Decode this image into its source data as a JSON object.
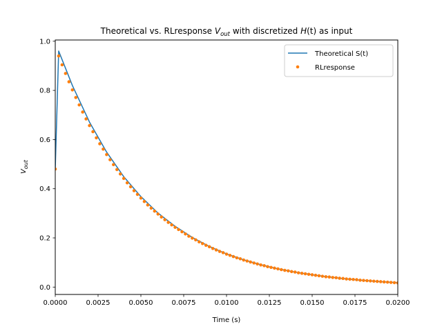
{
  "chart_data": {
    "type": "line",
    "title": {
      "prefix": "Theoretical vs. RLresponse ",
      "v": "V",
      "v_sub": "out",
      "middle": " with discretized ",
      "h": "H",
      "h_arg": "(t)",
      "suffix": " as input"
    },
    "xlabel": "Time (s)",
    "ylabel": {
      "v": "V",
      "sub": "out"
    },
    "xlim": [
      0,
      0.02
    ],
    "ylim": [
      -0.03,
      1.005
    ],
    "x_ticks": [
      0,
      0.0025,
      0.005,
      0.0075,
      0.01,
      0.0125,
      0.015,
      0.0175,
      0.02
    ],
    "x_tick_labels": [
      "0.0000",
      "0.0025",
      "0.0050",
      "0.0075",
      "0.0100",
      "0.0125",
      "0.0150",
      "0.0175",
      "0.0200"
    ],
    "y_ticks": [
      0,
      0.2,
      0.4,
      0.6,
      0.8,
      1.0
    ],
    "y_tick_labels": [
      "0.0",
      "0.2",
      "0.4",
      "0.6",
      "0.8",
      "1.0"
    ],
    "grid": false,
    "legend_position": "top-right",
    "series": [
      {
        "name": "Theoretical S(t)",
        "kind": "line",
        "color": "#1f77b4",
        "x": [
          0,
          0.0002,
          0.001,
          0.002,
          0.003,
          0.004,
          0.005,
          0.006,
          0.007,
          0.008,
          0.009,
          0.01,
          0.011,
          0.012,
          0.013,
          0.014,
          0.015,
          0.016,
          0.017,
          0.018,
          0.019,
          0.02
        ],
        "y": [
          0.48,
          0.96,
          0.82,
          0.671,
          0.549,
          0.449,
          0.368,
          0.301,
          0.247,
          0.202,
          0.165,
          0.135,
          0.111,
          0.091,
          0.074,
          0.061,
          0.05,
          0.041,
          0.033,
          0.027,
          0.022,
          0.018
        ]
      },
      {
        "name": "RLresponse",
        "kind": "scatter",
        "color": "#ff7f0e",
        "x": [
          0,
          0.0002,
          0.0004,
          0.0006,
          0.0008,
          0.001,
          0.0012,
          0.0014,
          0.0016,
          0.0018,
          0.002,
          0.0022,
          0.0024,
          0.0026,
          0.0028,
          0.003,
          0.0032,
          0.0034,
          0.0036,
          0.0038,
          0.004,
          0.0042,
          0.0044,
          0.0046,
          0.0048,
          0.005,
          0.0052,
          0.0054,
          0.0056,
          0.0058,
          0.006,
          0.0062,
          0.0064,
          0.0066,
          0.0068,
          0.007,
          0.0072,
          0.0074,
          0.0076,
          0.0078,
          0.008,
          0.0082,
          0.0084,
          0.0086,
          0.0088,
          0.009,
          0.0092,
          0.0094,
          0.0096,
          0.0098,
          0.01,
          0.0102,
          0.0104,
          0.0106,
          0.0108,
          0.011,
          0.0112,
          0.0114,
          0.0116,
          0.0118,
          0.012,
          0.0122,
          0.0124,
          0.0126,
          0.0128,
          0.013,
          0.0132,
          0.0134,
          0.0136,
          0.0138,
          0.014,
          0.0142,
          0.0144,
          0.0146,
          0.0148,
          0.015,
          0.0152,
          0.0154,
          0.0156,
          0.0158,
          0.016,
          0.0162,
          0.0164,
          0.0166,
          0.0168,
          0.017,
          0.0172,
          0.0174,
          0.0176,
          0.0178,
          0.018,
          0.0182,
          0.0184,
          0.0186,
          0.0188,
          0.019,
          0.0192,
          0.0194,
          0.0196,
          0.0198,
          0.02
        ],
        "y": [
          0.48,
          0.94,
          0.904,
          0.869,
          0.835,
          0.802,
          0.771,
          0.741,
          0.712,
          0.684,
          0.657,
          0.632,
          0.607,
          0.583,
          0.561,
          0.539,
          0.518,
          0.498,
          0.478,
          0.46,
          0.442,
          0.424,
          0.408,
          0.392,
          0.377,
          0.362,
          0.348,
          0.334,
          0.321,
          0.309,
          0.297,
          0.285,
          0.274,
          0.263,
          0.253,
          0.243,
          0.234,
          0.225,
          0.216,
          0.207,
          0.199,
          0.192,
          0.184,
          0.177,
          0.17,
          0.164,
          0.157,
          0.151,
          0.145,
          0.14,
          0.134,
          0.129,
          0.124,
          0.119,
          0.115,
          0.11,
          0.106,
          0.102,
          0.098,
          0.094,
          0.09,
          0.087,
          0.083,
          0.08,
          0.077,
          0.074,
          0.071,
          0.068,
          0.066,
          0.063,
          0.061,
          0.058,
          0.056,
          0.054,
          0.052,
          0.05,
          0.048,
          0.046,
          0.044,
          0.042,
          0.041,
          0.039,
          0.038,
          0.036,
          0.035,
          0.033,
          0.032,
          0.031,
          0.03,
          0.028,
          0.027,
          0.026,
          0.025,
          0.024,
          0.023,
          0.022,
          0.021,
          0.02,
          0.019,
          0.018,
          0.017
        ]
      }
    ]
  }
}
